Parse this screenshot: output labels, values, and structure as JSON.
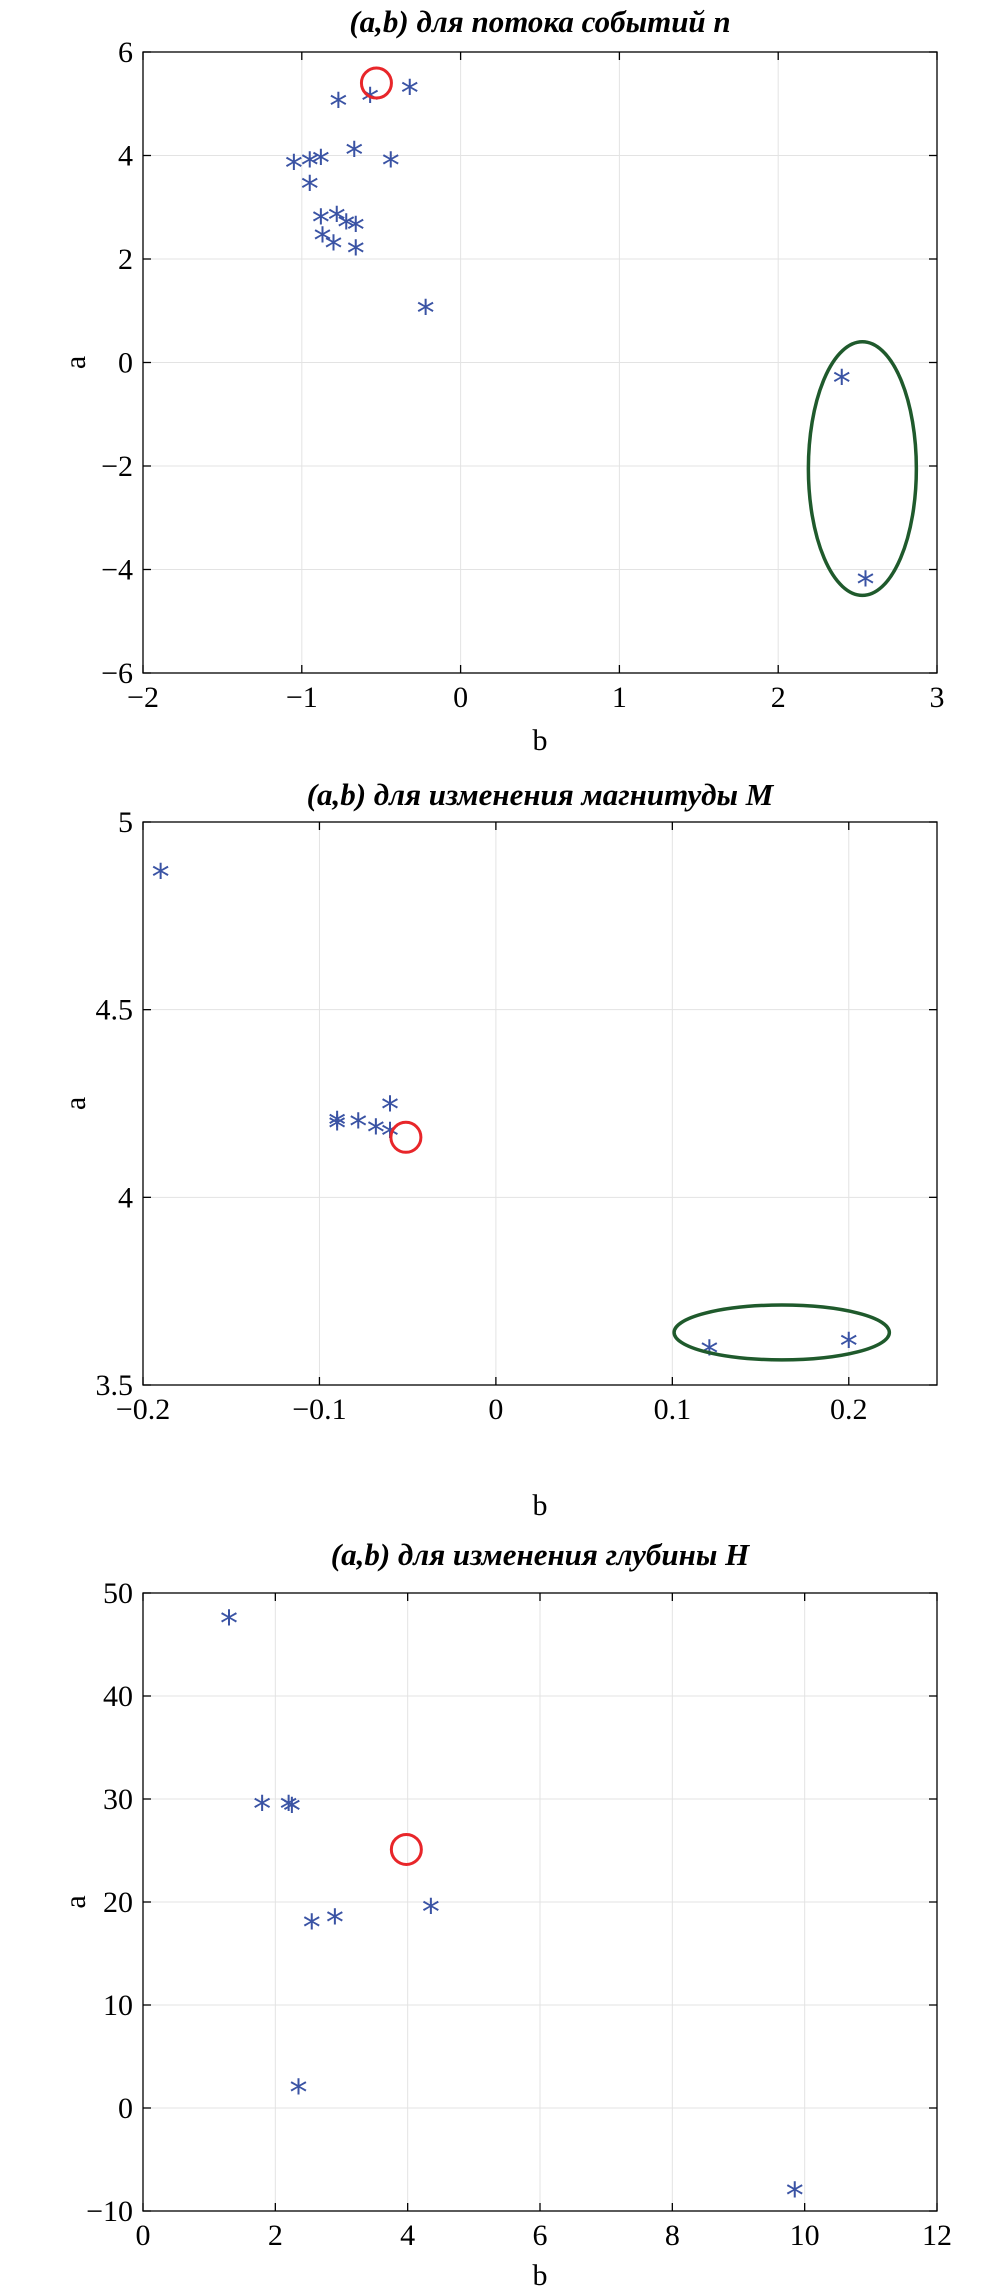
{
  "chart_data": [
    {
      "type": "scatter",
      "title": "(a,b) для потока событий n",
      "xlabel": "b",
      "ylabel": "a",
      "xlim": [
        -2,
        3
      ],
      "ylim": [
        -6,
        6
      ],
      "xticks": [
        -2,
        -1,
        0,
        1,
        2,
        3
      ],
      "yticks": [
        -6,
        -4,
        -2,
        0,
        2,
        4,
        6
      ],
      "xtick_labels": [
        "−2",
        "−1",
        "0",
        "1",
        "2",
        "3"
      ],
      "ytick_labels": [
        "−6",
        "−4",
        "−2",
        "0",
        "2",
        "4",
        "6"
      ],
      "grid": true,
      "marker": "*",
      "marker_color": "#3a53a4",
      "points": [
        {
          "x": -0.32,
          "y": 5.4
        },
        {
          "x": -0.57,
          "y": 5.25
        },
        {
          "x": -0.77,
          "y": 5.15
        },
        {
          "x": -0.67,
          "y": 4.2
        },
        {
          "x": -0.44,
          "y": 4.0
        },
        {
          "x": -1.05,
          "y": 3.95
        },
        {
          "x": -0.95,
          "y": 4.0
        },
        {
          "x": -0.88,
          "y": 4.05
        },
        {
          "x": -0.95,
          "y": 3.55
        },
        {
          "x": -0.88,
          "y": 2.9
        },
        {
          "x": -0.78,
          "y": 2.95
        },
        {
          "x": -0.72,
          "y": 2.8
        },
        {
          "x": -0.66,
          "y": 2.75
        },
        {
          "x": -0.87,
          "y": 2.55
        },
        {
          "x": -0.8,
          "y": 2.4
        },
        {
          "x": -0.66,
          "y": 2.3
        },
        {
          "x": -0.22,
          "y": 1.15
        },
        {
          "x": 2.4,
          "y": -0.2
        },
        {
          "x": 2.55,
          "y": -4.1
        }
      ],
      "highlight_circle": {
        "x": -0.53,
        "y": 5.4,
        "color": "#e8262a"
      },
      "highlight_ellipse": {
        "cx": 2.53,
        "cy": -2.05,
        "rx": 0.34,
        "ry": 2.45,
        "color": "#1f5a2c"
      }
    },
    {
      "type": "scatter",
      "title": "(a,b) для изменения магнитуды M",
      "xlabel": "b",
      "ylabel": "a",
      "xlim": [
        -0.2,
        0.25
      ],
      "ylim": [
        3.5,
        5
      ],
      "xticks": [
        -0.2,
        -0.1,
        0,
        0.1,
        0.2
      ],
      "yticks": [
        3.5,
        4,
        4.5,
        5
      ],
      "xtick_labels": [
        "−0.2",
        "−0.1",
        "0",
        "0.1",
        "0.2"
      ],
      "ytick_labels": [
        "3.5",
        "4",
        "4.5",
        "5"
      ],
      "grid": true,
      "marker": "*",
      "marker_color": "#3a53a4",
      "points": [
        {
          "x": -0.19,
          "y": 4.88
        },
        {
          "x": -0.09,
          "y": 4.22
        },
        {
          "x": -0.09,
          "y": 4.21
        },
        {
          "x": -0.078,
          "y": 4.215
        },
        {
          "x": -0.068,
          "y": 4.2
        },
        {
          "x": -0.06,
          "y": 4.19
        },
        {
          "x": -0.06,
          "y": 4.26
        },
        {
          "x": 0.121,
          "y": 3.61
        },
        {
          "x": 0.2,
          "y": 3.63
        }
      ],
      "highlight_circle": {
        "x": -0.051,
        "y": 4.16,
        "color": "#e8262a"
      },
      "highlight_ellipse": {
        "cx": 0.162,
        "cy": 3.64,
        "rx": 0.061,
        "ry": 0.073,
        "color": "#1f5a2c"
      }
    },
    {
      "type": "scatter",
      "title": "(a,b) для изменения глубины H",
      "xlabel": "b",
      "ylabel": "a",
      "xlim": [
        0,
        12
      ],
      "ylim": [
        -10,
        50
      ],
      "xticks": [
        0,
        2,
        4,
        6,
        8,
        10,
        12
      ],
      "yticks": [
        -10,
        0,
        10,
        20,
        30,
        40,
        50
      ],
      "xtick_labels": [
        "0",
        "2",
        "4",
        "6",
        "8",
        "10",
        "12"
      ],
      "ytick_labels": [
        "−10",
        "0",
        "10",
        "20",
        "30",
        "40",
        "50"
      ],
      "grid": true,
      "marker": "*",
      "marker_color": "#3a53a4",
      "points": [
        {
          "x": 1.3,
          "y": 48
        },
        {
          "x": 1.8,
          "y": 30
        },
        {
          "x": 2.2,
          "y": 30
        },
        {
          "x": 2.25,
          "y": 29.8
        },
        {
          "x": 2.55,
          "y": 18.5
        },
        {
          "x": 2.9,
          "y": 19
        },
        {
          "x": 4.35,
          "y": 20
        },
        {
          "x": 2.35,
          "y": 2.5
        },
        {
          "x": 9.85,
          "y": -7.5
        }
      ],
      "highlight_circle": {
        "x": 3.98,
        "y": 25.1,
        "color": "#e8262a"
      },
      "highlight_ellipse": null
    }
  ]
}
